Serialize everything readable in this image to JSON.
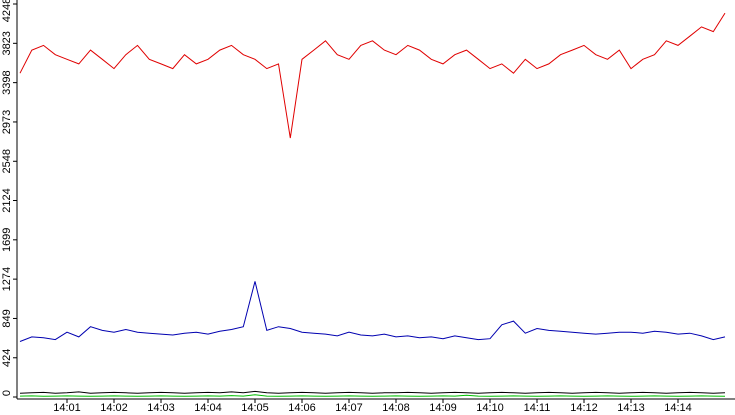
{
  "chart_data": {
    "type": "line",
    "categories": [
      null,
      null,
      null,
      null,
      "14:01",
      null,
      null,
      null,
      "14:02",
      null,
      null,
      null,
      "14:03",
      null,
      null,
      null,
      "14:04",
      null,
      null,
      null,
      "14:05",
      null,
      null,
      null,
      "14:06",
      null,
      null,
      null,
      "14:07",
      null,
      null,
      null,
      "14:08",
      null,
      null,
      null,
      "14:09",
      null,
      null,
      null,
      "14:10",
      null,
      null,
      null,
      "14:11",
      null,
      null,
      null,
      "14:12",
      null,
      null,
      null,
      "14:13",
      null,
      null,
      null,
      "14:14",
      null,
      null,
      null,
      null
    ],
    "series": [
      {
        "color": "#e00000",
        "values": [
          3500,
          3750,
          3800,
          3700,
          3650,
          3600,
          3750,
          3650,
          3550,
          3700,
          3800,
          3650,
          3600,
          3550,
          3700,
          3600,
          3650,
          3750,
          3800,
          3700,
          3650,
          3550,
          3600,
          2800,
          3650,
          3750,
          3850,
          3700,
          3650,
          3800,
          3850,
          3750,
          3700,
          3800,
          3750,
          3650,
          3600,
          3700,
          3750,
          3650,
          3550,
          3600,
          3500,
          3650,
          3550,
          3600,
          3700,
          3750,
          3800,
          3700,
          3650,
          3750,
          3550,
          3650,
          3700,
          3850,
          3800,
          3900,
          4000,
          3950,
          4150
        ]
      },
      {
        "color": "#0000b0",
        "values": [
          600,
          650,
          640,
          620,
          700,
          650,
          760,
          720,
          700,
          730,
          700,
          690,
          680,
          670,
          690,
          700,
          680,
          710,
          730,
          760,
          1250,
          720,
          760,
          740,
          700,
          690,
          680,
          660,
          700,
          670,
          660,
          680,
          650,
          660,
          640,
          650,
          630,
          660,
          640,
          620,
          630,
          780,
          820,
          690,
          740,
          720,
          710,
          700,
          690,
          680,
          690,
          700,
          700,
          690,
          710,
          700,
          680,
          690,
          660,
          620,
          650
        ]
      },
      {
        "color": "#000000",
        "values": [
          40,
          45,
          50,
          40,
          45,
          55,
          40,
          45,
          50,
          45,
          40,
          45,
          50,
          45,
          40,
          45,
          50,
          45,
          55,
          45,
          60,
          45,
          40,
          45,
          50,
          45,
          40,
          45,
          50,
          45,
          40,
          45,
          45,
          50,
          45,
          40,
          45,
          50,
          45,
          40,
          45,
          50,
          45,
          40,
          45,
          50,
          45,
          40,
          45,
          50,
          45,
          40,
          45,
          50,
          45,
          40,
          45,
          50,
          45,
          40,
          45
        ]
      },
      {
        "color": "#00c000",
        "values": [
          10,
          12,
          8,
          10,
          12,
          10,
          8,
          10,
          12,
          10,
          8,
          10,
          12,
          10,
          8,
          10,
          12,
          10,
          15,
          10,
          25,
          10,
          8,
          10,
          12,
          10,
          8,
          10,
          12,
          10,
          8,
          10,
          12,
          10,
          8,
          10,
          12,
          10,
          18,
          10,
          8,
          10,
          12,
          10,
          8,
          10,
          12,
          10,
          8,
          10,
          12,
          10,
          8,
          10,
          12,
          10,
          8,
          10,
          12,
          10,
          8
        ]
      }
    ],
    "ylim": [
      0,
      4248
    ],
    "yticks": [
      0,
      424,
      849,
      1274,
      1699,
      2124,
      2548,
      2973,
      3398,
      3823,
      4248
    ],
    "grid": false
  }
}
